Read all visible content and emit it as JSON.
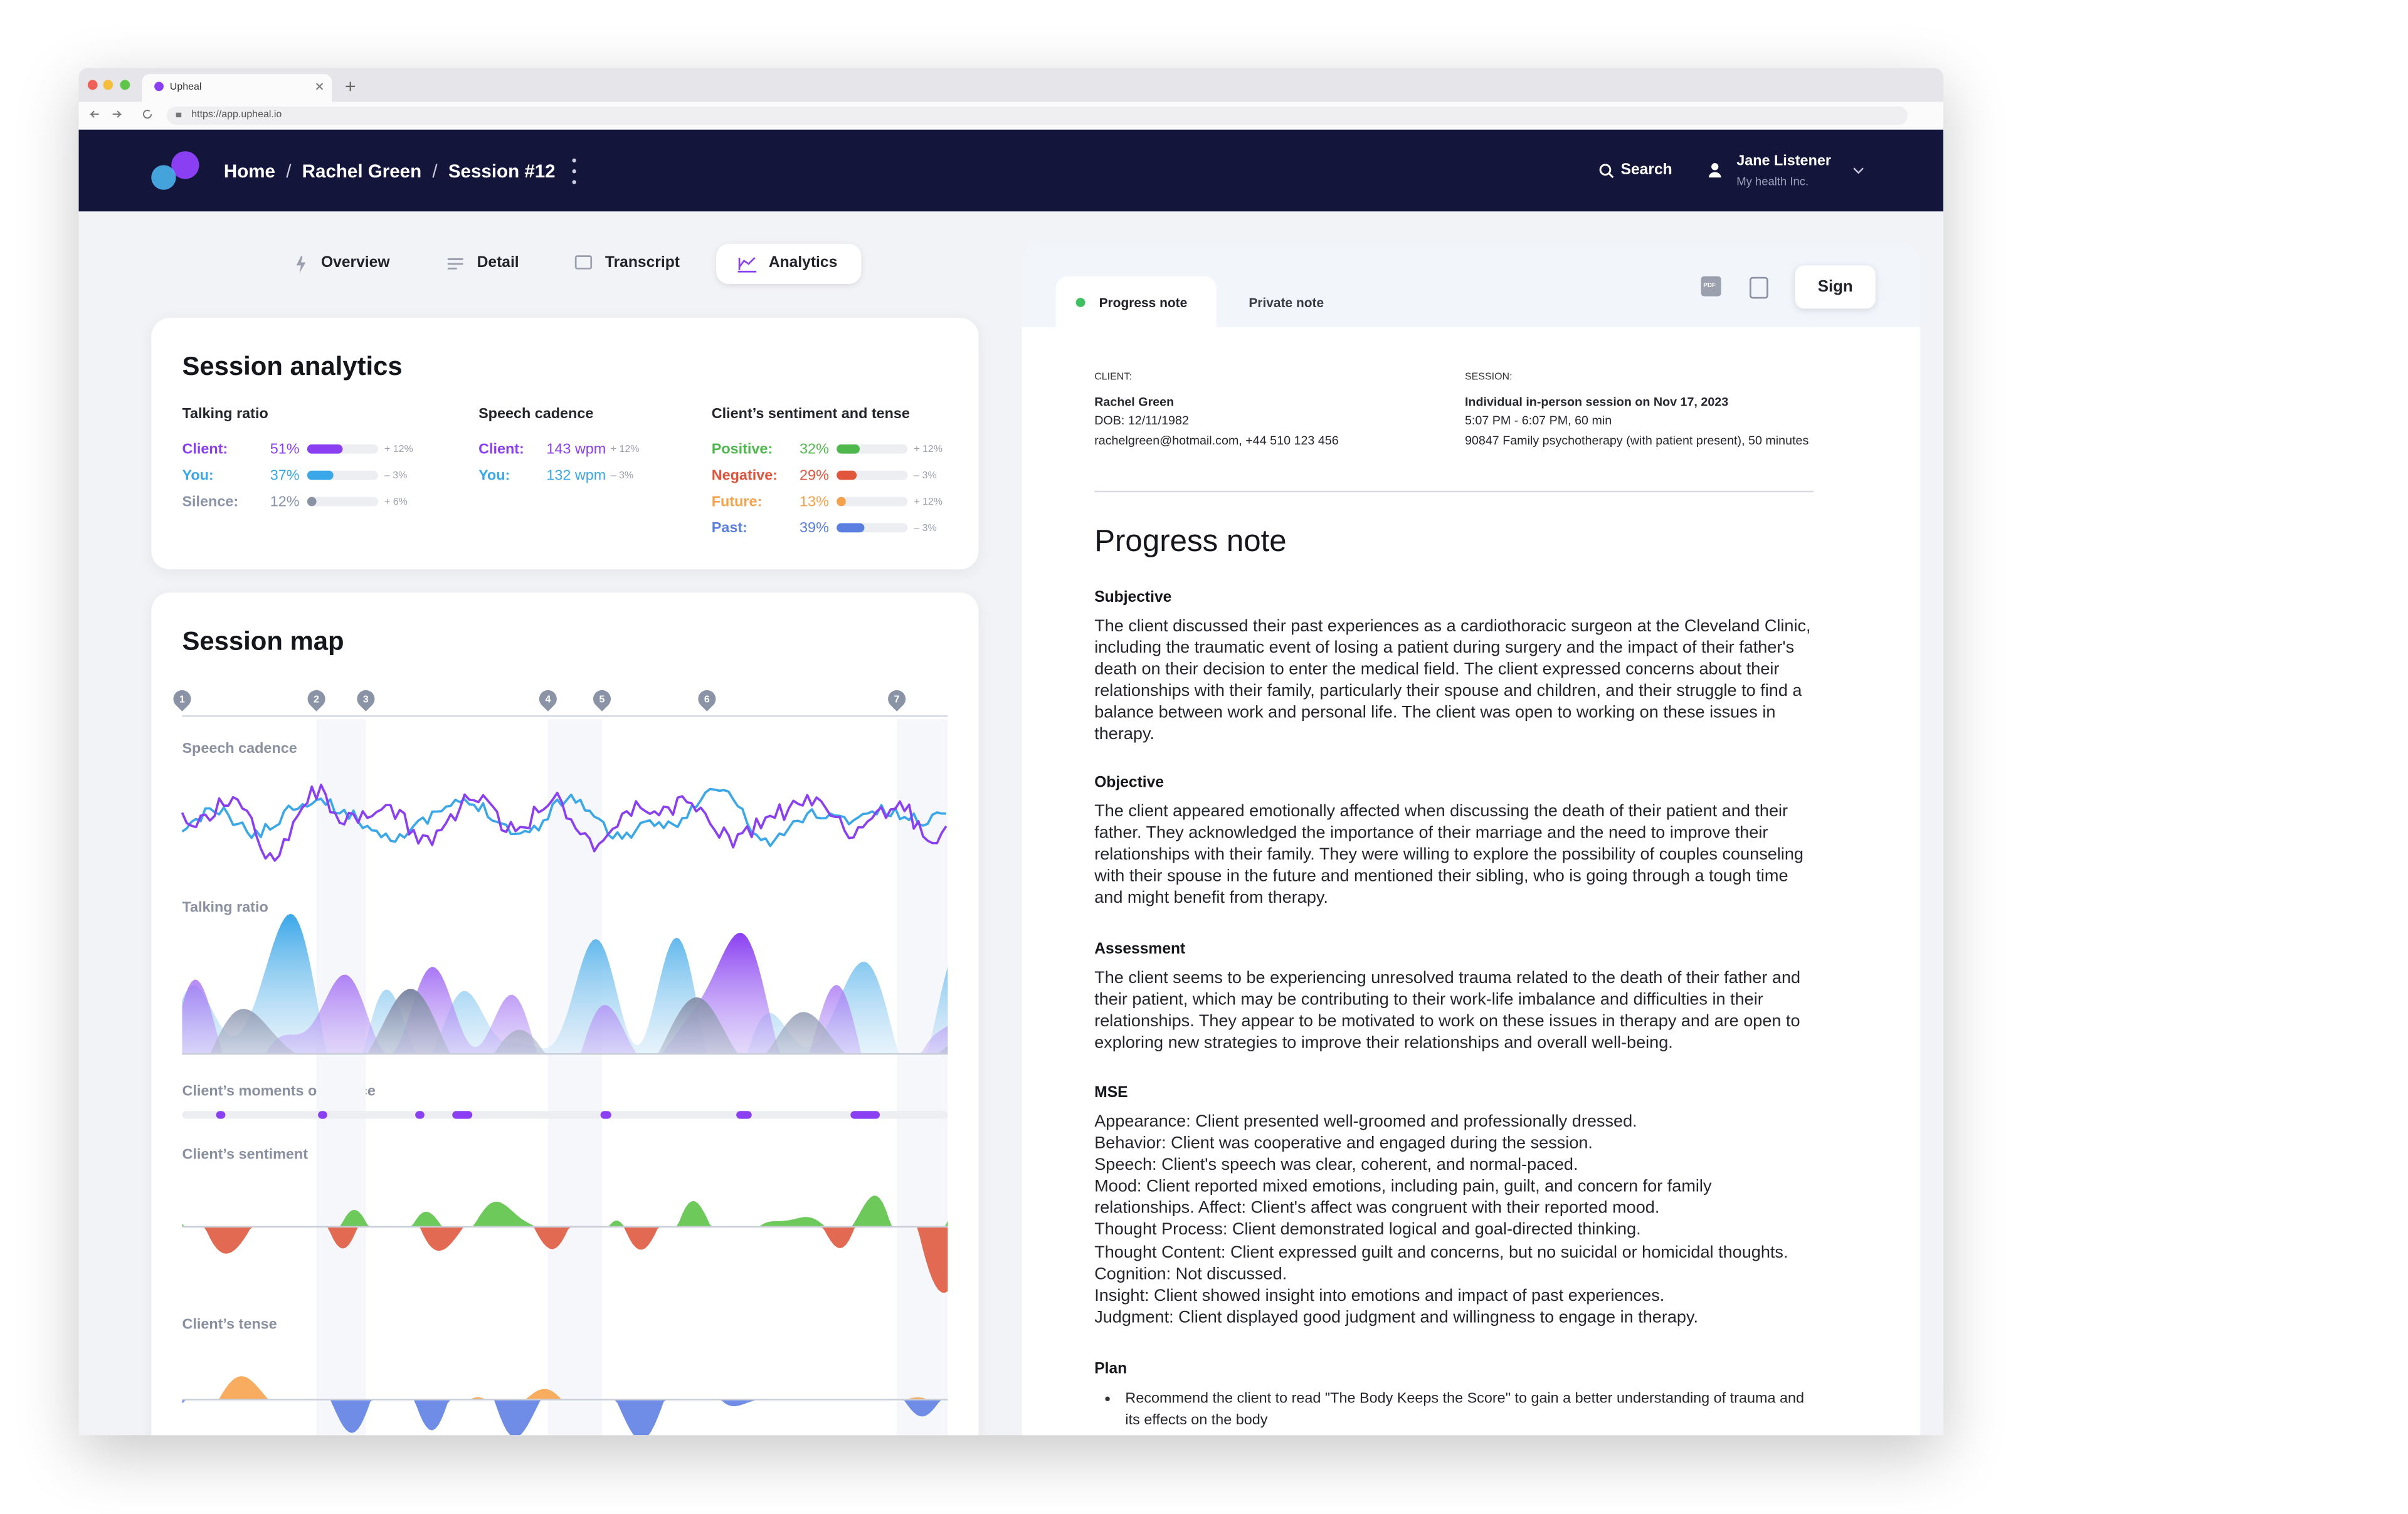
{
  "browser": {
    "tab_title": "Upheal",
    "url": "https://app.upheal.io"
  },
  "header": {
    "breadcrumb": [
      "Home",
      "Rachel Green",
      "Session #12"
    ],
    "separator": "/",
    "search": "Search",
    "user_name": "Jane Listener",
    "user_org": "My health Inc."
  },
  "view_tabs": [
    "Overview",
    "Detail",
    "Transcript",
    "Analytics"
  ],
  "active_tab": 3,
  "session_analytics": {
    "title": "Session analytics",
    "groups": [
      {
        "title": "Talking ratio",
        "rows": [
          {
            "label": "Client:",
            "value": 51,
            "value_label": "51%",
            "change": "+ 12%",
            "color": "#8a3ff2"
          },
          {
            "label": "You:",
            "value": 37,
            "value_label": "37%",
            "change": "– 3%",
            "color": "#3aa7e8"
          },
          {
            "label": "Silence:",
            "value": 12,
            "value_label": "12%",
            "change": "+ 6%",
            "color": "#8a93a6"
          }
        ]
      },
      {
        "title": "Speech cadence",
        "rows": [
          {
            "label": "Client:",
            "value_label": "143 wpm",
            "change": "+ 12%",
            "color": "#8a3ff2"
          },
          {
            "label": "You:",
            "value_label": "132 wpm",
            "change": "– 3%",
            "color": "#3aa7e8"
          }
        ]
      },
      {
        "title": "Client’s sentiment and tense",
        "rows": [
          {
            "label": "Positive:",
            "value": 32,
            "value_label": "32%",
            "change": "+ 12%",
            "color": "#4fb84d"
          },
          {
            "label": "Negative:",
            "value": 29,
            "value_label": "29%",
            "change": "– 3%",
            "color": "#e0553c"
          },
          {
            "label": "Future:",
            "value": 13,
            "value_label": "13%",
            "change": "+ 12%",
            "color": "#f5a24a"
          },
          {
            "label": "Past:",
            "value": 39,
            "value_label": "39%",
            "change": "– 3%",
            "color": "#5b7fe0"
          }
        ]
      }
    ]
  },
  "session_map": {
    "title": "Session map",
    "markers": [
      "1",
      "2",
      "3",
      "4",
      "5",
      "6",
      "7"
    ],
    "tracks": [
      "Speech cadence",
      "Talking ratio",
      "Client’s moments of silence",
      "Client’s sentiment",
      "Client’s tense"
    ]
  },
  "note": {
    "tabs": [
      "Progress note",
      "Private note"
    ],
    "pdf_icon": "PDF",
    "sign": "Sign",
    "client_label": "CLIENT:",
    "client_lines": [
      "Rachel Green",
      "DOB: 12/11/1982",
      "rachelgreen@hotmail.com, +44 510 123 456"
    ],
    "session_label": "SESSION:",
    "session_lines": [
      "Individual in-person session on Nov 17, 2023",
      "5:07 PM - 6:07 PM, 60 min",
      "90847 Family psychotherapy (with patient present), 50 minutes"
    ],
    "title": "Progress note",
    "sections": [
      {
        "heading": "Subjective",
        "lines": [
          "The client discussed their past experiences as a cardiothoracic surgeon at the Cleveland Clinic, including the traumatic event of losing a patient during surgery and the impact of their father's death on their decision to enter the medical field. The client expressed concerns about their relationships with their family, particularly their spouse and children, and their struggle to find a balance between work and personal life. The client was open to working on these issues in therapy."
        ]
      },
      {
        "heading": "Objective",
        "lines": [
          "The client appeared emotionally affected when discussing the death of their patient and their father. They acknowledged the importance of their marriage and the need to improve their relationships with their family. They were willing to explore the possibility of couples counseling with their spouse in the future and mentioned their sibling, who is going through a tough time and might benefit from therapy."
        ]
      },
      {
        "heading": "Assessment",
        "lines": [
          "The client seems to be experiencing unresolved trauma related to the death of their father and their patient, which may be contributing to their work-life imbalance and difficulties in their relationships. They appear to be motivated to work on these issues in therapy and are open to exploring new strategies to improve their relationships and overall well-being."
        ]
      },
      {
        "heading": "MSE",
        "lines": [
          "Appearance: Client presented well-groomed and professionally dressed.",
          "Behavior: Client was cooperative and engaged during the session.",
          "Speech: Client's speech was clear, coherent, and normal-paced.",
          "Mood: Client reported mixed emotions, including pain, guilt, and concern for family relationships. Affect: Client's affect was congruent with their reported mood.",
          "Thought Process: Client demonstrated logical and goal-directed thinking.",
          "Thought Content: Client expressed guilt and concerns, but no suicidal or homicidal thoughts. Cognition: Not discussed.",
          "Insight: Client showed insight into emotions and impact of past experiences.",
          "Judgment: Client displayed good judgment and willingness to engage in therapy."
        ]
      },
      {
        "heading": "Plan",
        "bullets": [
          "Recommend the client to read \"The Body Keeps the Score\" to gain a better understanding of trauma and its effects on the body"
        ]
      }
    ]
  }
}
